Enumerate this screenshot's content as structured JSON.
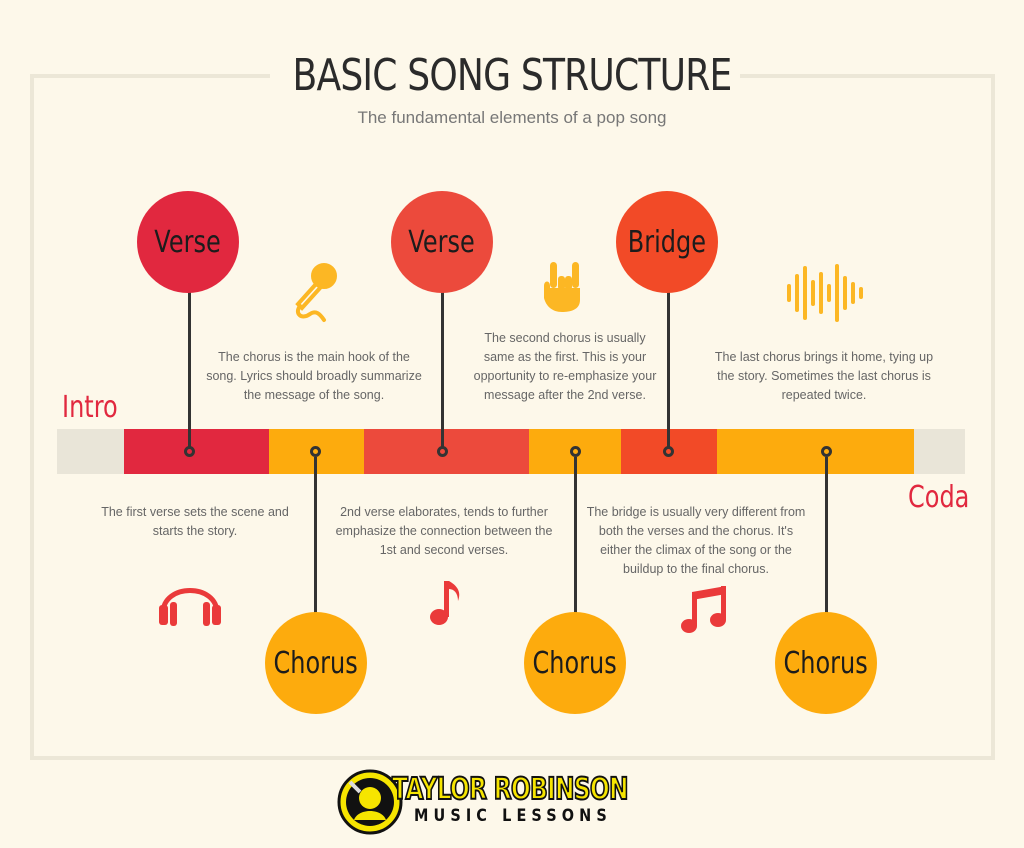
{
  "title": "BASIC SONG STRUCTURE",
  "subtitle": "The fundamental elements of a pop song",
  "sections": {
    "intro": "Intro",
    "coda": "Coda",
    "verse1": "Verse",
    "verse2": "Verse",
    "bridge": "Bridge",
    "chorus1": "Chorus",
    "chorus2": "Chorus",
    "chorus3": "Chorus"
  },
  "descriptions": {
    "chorus1": "The chorus is the main hook of the song. Lyrics should broadly summarize the message of the song.",
    "chorus2": "The second chorus is usually same as the first. This is your opportunity to re-emphasize your message after the 2nd verse.",
    "chorus3": "The last chorus brings it home, tying up the story. Sometimes the last chorus is repeated twice.",
    "verse1": "The first verse sets the scene and starts the story.",
    "verse2": "2nd verse elaborates, tends to further emphasize the connection between the 1st and second verses.",
    "bridge": "The bridge is usually very different from both the verses and the chorus. It's either the climax of the song or the buildup to the final chorus."
  },
  "icons": [
    "microphone-icon",
    "rock-hand-icon",
    "sound-wave-icon",
    "headphones-icon",
    "music-note-icon",
    "beamed-notes-icon"
  ],
  "logo": {
    "line1": "TAYLOR ROBINSON",
    "line2": "MUSIC LESSONS"
  },
  "colors": {
    "background": "#fdf8ea",
    "verse1": "#e1283f",
    "verse2": "#ec4a3c",
    "bridge": "#f24a27",
    "chorus": "#fdab0d",
    "intro_coda_bar": "#e9e5d8",
    "intro_text": "#e1283f",
    "coda_text": "#e1283f",
    "icon_gold": "#fcb724",
    "icon_red": "#ea3a3a"
  }
}
